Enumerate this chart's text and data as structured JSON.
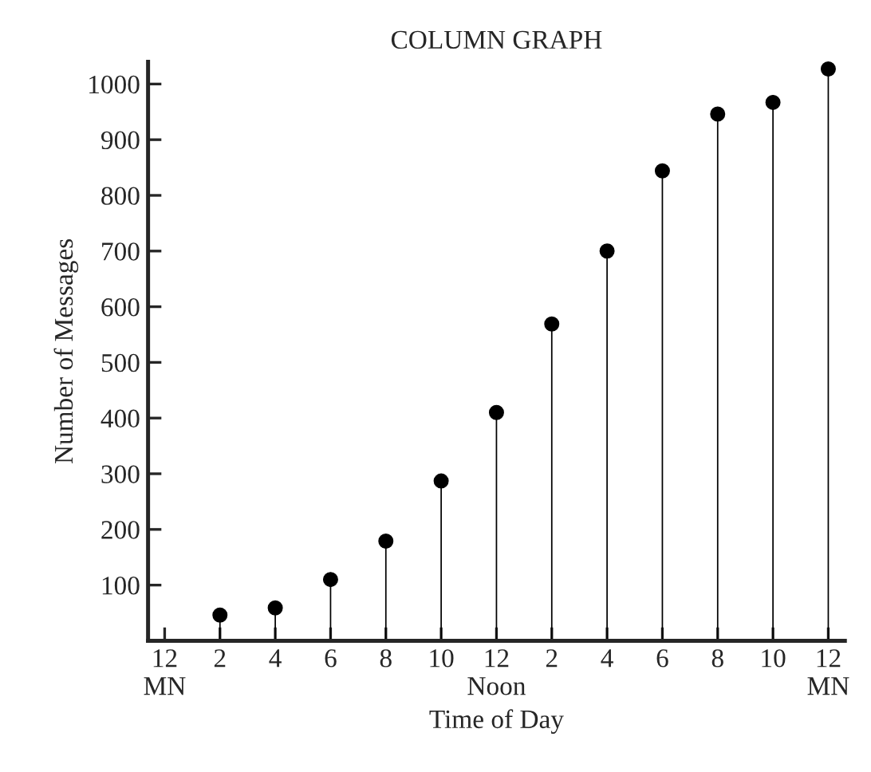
{
  "chart_data": {
    "type": "lollipop",
    "title": "COLUMN GRAPH",
    "xlabel": "Time of Day",
    "ylabel": "Number of Messages",
    "categories": [
      "12\nMN",
      "2",
      "4",
      "6",
      "8",
      "10",
      "12\nNoon",
      "2",
      "4",
      "6",
      "8",
      "10",
      "12\nMN"
    ],
    "series": [
      {
        "color": "#000000",
        "values": [
          null,
          46,
          59,
          110,
          179,
          287,
          410,
          569,
          700,
          844,
          946,
          967,
          1027
        ]
      }
    ],
    "ylim": [
      0,
      1040
    ],
    "yticks": [
      100,
      200,
      300,
      400,
      500,
      600,
      700,
      800,
      900,
      1000
    ],
    "marker": "circle",
    "legend": false
  }
}
